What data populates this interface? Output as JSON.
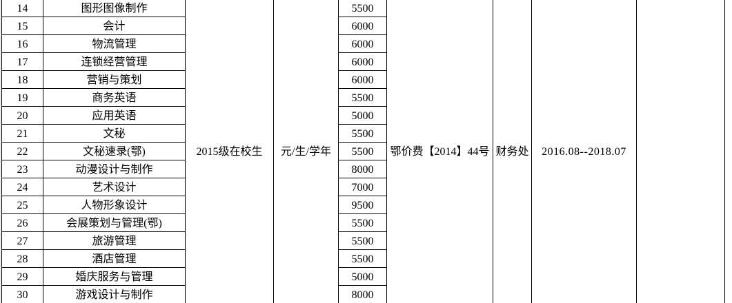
{
  "table": {
    "merged": {
      "cohort": "2015级在校生",
      "unit": "元/生/学年",
      "doc_no": "鄂价费【2014】44号",
      "dept": "财务处",
      "period": "2016.08--2018.07",
      "last": ""
    },
    "rows": [
      {
        "no": "14",
        "major": "图形图像制作",
        "fee": "5500"
      },
      {
        "no": "15",
        "major": "会计",
        "fee": "6000"
      },
      {
        "no": "16",
        "major": "物流管理",
        "fee": "6000"
      },
      {
        "no": "17",
        "major": "连锁经营管理",
        "fee": "6000"
      },
      {
        "no": "18",
        "major": "营销与策划",
        "fee": "6000"
      },
      {
        "no": "19",
        "major": "商务英语",
        "fee": "5500"
      },
      {
        "no": "20",
        "major": "应用英语",
        "fee": "5000"
      },
      {
        "no": "21",
        "major": "文秘",
        "fee": "5500"
      },
      {
        "no": "22",
        "major": "文秘速录(鄂)",
        "fee": "5500"
      },
      {
        "no": "23",
        "major": "动漫设计与制作",
        "fee": "8000"
      },
      {
        "no": "24",
        "major": "艺术设计",
        "fee": "7000"
      },
      {
        "no": "25",
        "major": "人物形象设计",
        "fee": "9500"
      },
      {
        "no": "26",
        "major": "会展策划与管理(鄂)",
        "fee": "5500"
      },
      {
        "no": "27",
        "major": "旅游管理",
        "fee": "5500"
      },
      {
        "no": "28",
        "major": "酒店管理",
        "fee": "5500"
      },
      {
        "no": "29",
        "major": "婚庆服务与管理",
        "fee": "5000"
      },
      {
        "no": "30",
        "major": "游戏设计与制作",
        "fee": "8000"
      }
    ]
  }
}
